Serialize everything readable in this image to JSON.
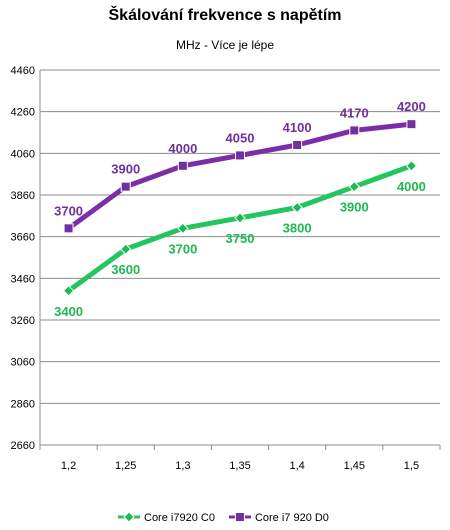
{
  "chart_data": {
    "type": "line",
    "title": "Škálování frekvence s napětím",
    "subtitle": "MHz - Více je lépe",
    "xlabel": "",
    "ylabel": "",
    "categories": [
      "1,2",
      "1,25",
      "1,3",
      "1,35",
      "1,4",
      "1,45",
      "1,5"
    ],
    "ylim": [
      2660,
      4460
    ],
    "yticks": [
      "2660",
      "2860",
      "3060",
      "3260",
      "3460",
      "3660",
      "3860",
      "4060",
      "4260",
      "4460"
    ],
    "grid": "horizontal",
    "legend_position": "bottom",
    "series": [
      {
        "name": "Core i7920 C0",
        "color": "#1db954",
        "line_color": "#22c55e",
        "marker": "diamond",
        "values": [
          3400,
          3600,
          3700,
          3750,
          3800,
          3900,
          4000
        ],
        "labels": [
          "3400",
          "3600",
          "3700",
          "3750",
          "3800",
          "3900",
          "4000"
        ],
        "label_position": "below"
      },
      {
        "name": "Core i7 920 D0",
        "color": "#7030a0",
        "line_color": "#7a2fa8",
        "marker": "square",
        "values": [
          3700,
          3900,
          4000,
          4050,
          4100,
          4170,
          4200
        ],
        "labels": [
          "3700",
          "3900",
          "4000",
          "4050",
          "4100",
          "4170",
          "4200"
        ],
        "label_position": "above"
      }
    ]
  }
}
